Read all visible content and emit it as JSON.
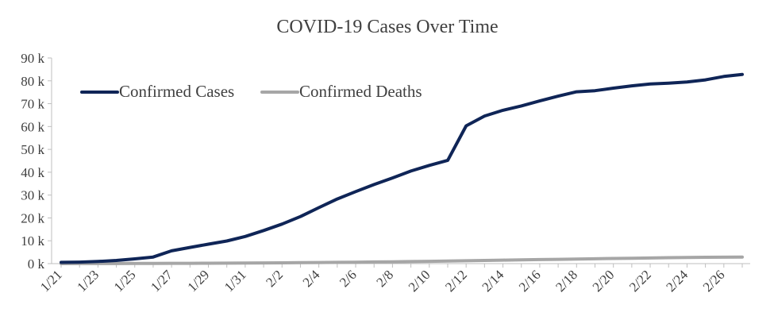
{
  "chart_data": {
    "type": "line",
    "title": "COVID-19 Cases Over Time",
    "xlabel": "",
    "ylabel": "",
    "x": [
      "1/21",
      "1/22",
      "1/23",
      "1/24",
      "1/25",
      "1/26",
      "1/27",
      "1/28",
      "1/29",
      "1/30",
      "1/31",
      "2/1",
      "2/2",
      "2/3",
      "2/4",
      "2/5",
      "2/6",
      "2/7",
      "2/8",
      "2/9",
      "2/10",
      "2/11",
      "2/12",
      "2/13",
      "2/14",
      "2/15",
      "2/16",
      "2/17",
      "2/18",
      "2/19",
      "2/20",
      "2/21",
      "2/22",
      "2/23",
      "2/24",
      "2/25",
      "2/26",
      "2/27"
    ],
    "x_tick_labels": [
      "1/21",
      "1/23",
      "1/25",
      "1/27",
      "1/29",
      "1/31",
      "2/2",
      "2/4",
      "2/6",
      "2/8",
      "2/10",
      "2/12",
      "2/14",
      "2/16",
      "2/18",
      "2/20",
      "2/22",
      "2/24",
      "2/26"
    ],
    "y_tick_values": [
      0,
      10000,
      20000,
      30000,
      40000,
      50000,
      60000,
      70000,
      80000,
      90000
    ],
    "y_tick_labels": [
      "0 k",
      "10 k",
      "20 k",
      "30 k",
      "40 k",
      "50 k",
      "60 k",
      "70 k",
      "80 k",
      "90 k"
    ],
    "ylim": [
      0,
      90000
    ],
    "grid": false,
    "legend_position": "top-left",
    "series": [
      {
        "name": "Confirmed Cases",
        "color": "#0f2557",
        "values": [
          550,
          650,
          950,
          1400,
          2100,
          2900,
          5600,
          7100,
          8500,
          9900,
          11900,
          14500,
          17300,
          20600,
          24500,
          28300,
          31500,
          34600,
          37500,
          40500,
          43000,
          45200,
          60300,
          64600,
          67100,
          69000,
          71200,
          73300,
          75200,
          75700,
          76800,
          77800,
          78600,
          79000,
          79500,
          80400,
          81900,
          82800
        ]
      },
      {
        "name": "Confirmed Deaths",
        "color": "#a6a6a6",
        "values": [
          17,
          18,
          26,
          42,
          56,
          82,
          131,
          133,
          171,
          213,
          259,
          304,
          362,
          426,
          492,
          565,
          638,
          724,
          813,
          910,
          1018,
          1115,
          1261,
          1383,
          1526,
          1669,
          1775,
          1873,
          2009,
          2126,
          2247,
          2360,
          2460,
          2618,
          2699,
          2763,
          2800,
          2858
        ]
      }
    ]
  }
}
